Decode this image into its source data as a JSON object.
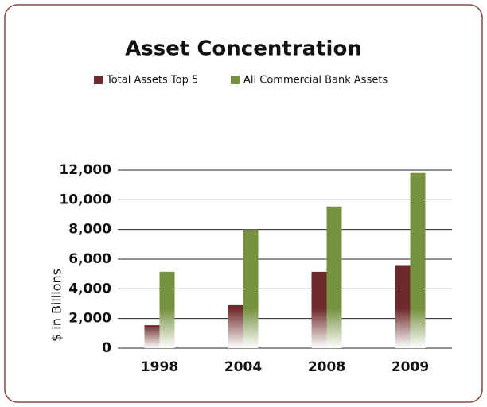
{
  "chart_data": {
    "type": "bar",
    "title": "Asset Concentration",
    "y_axis_label": "$ in Billions",
    "categories": [
      "1998",
      "2004",
      "2008",
      "2009"
    ],
    "series": [
      {
        "name": "Total Assets Top 5",
        "color": "#6e2a2a",
        "values": [
          1550,
          2900,
          5150,
          5600
        ]
      },
      {
        "name": "All Commercial Bank Assets",
        "color": "#76913f",
        "values": [
          5150,
          8000,
          9550,
          11800
        ]
      }
    ],
    "ylim": [
      0,
      12000
    ],
    "yticks": [
      0,
      {
        "value": 2000,
        "label": "2,000"
      },
      {
        "value": 4000,
        "label": "4,000"
      },
      {
        "value": 6000,
        "label": "6,000"
      },
      {
        "value": 8000,
        "label": "8,000"
      },
      {
        "value": 10000,
        "label": "10,000"
      },
      {
        "value": 12000,
        "label": "12,000"
      }
    ],
    "grid": true,
    "legend": "top"
  }
}
